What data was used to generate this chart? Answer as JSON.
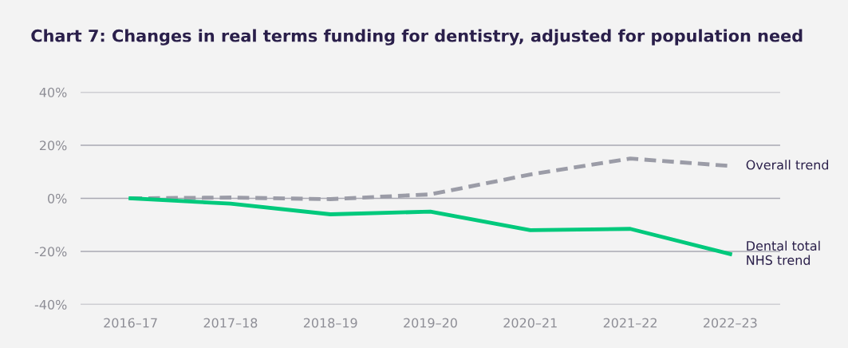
{
  "chart_data": {
    "type": "line",
    "title": "Chart 7: Changes in real terms funding for dentistry, adjusted for population need",
    "categories": [
      "2016–17",
      "2017–18",
      "2018–19",
      "2019–20",
      "2020–21",
      "2021–22",
      "2022–23"
    ],
    "series": [
      {
        "name": "Overall trend",
        "color": "#9b9ca7",
        "line_style": "dashed",
        "values": [
          0,
          0.3,
          -0.3,
          1.5,
          9,
          15,
          12.2
        ]
      },
      {
        "name": "Dental total\nNHS trend",
        "color": "#00c97c",
        "line_style": "solid",
        "values": [
          0,
          -2,
          -6,
          -5,
          -12,
          -11.5,
          -21
        ]
      }
    ],
    "ylim": [
      -40,
      40
    ],
    "yticks": [
      {
        "value": -40,
        "label": "-40%"
      },
      {
        "value": -20,
        "label": "-20%"
      },
      {
        "value": 0,
        "label": "0%"
      },
      {
        "value": 20,
        "label": "20%"
      },
      {
        "value": 40,
        "label": "40%"
      }
    ],
    "grid": "y",
    "legend": false,
    "marker": "none"
  }
}
